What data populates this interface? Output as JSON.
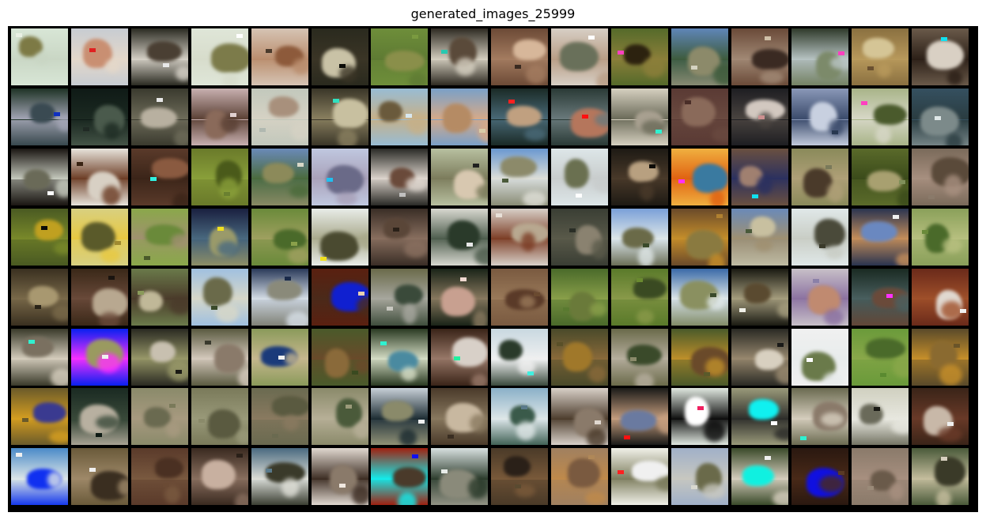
{
  "title": "generated_images_25999",
  "grid": {
    "rows": 8,
    "cols": 16,
    "tiles": [
      [
        "#d8e6d6",
        "#c9d6c4",
        "#7d7a45",
        0,
        "#e9f0e4"
      ],
      [
        "#c7ccd2",
        "#e5d8c9",
        "#c98f72",
        1,
        "#e02020"
      ],
      [
        "#2b2b22",
        "#d8d3c9",
        "#4a3f33",
        2,
        "#e8e8e8"
      ],
      [
        "#dfe6d8",
        "#d7dccb",
        "#7c7b4a",
        0,
        "#ffffff"
      ],
      [
        "#d6c4b4",
        "#b98c6c",
        "#8d5a3b",
        0,
        "#4a3a2c"
      ],
      [
        "#2a2a1e",
        "#3b3526",
        "#c9c2a6",
        2,
        "#0c0c08"
      ],
      [
        "#6e8e3a",
        "#5e7a33",
        "#8a8f4a",
        3,
        "#7a9a40"
      ],
      [
        "#2e2a22",
        "#d7d1c2",
        "#5a4a3a",
        2,
        "#28c8b0"
      ],
      [
        "#6c4a36",
        "#a57d61",
        "#d7b79a",
        2,
        "#3a2a20"
      ],
      [
        "#d7cfc5",
        "#b89c84",
        "#69705a",
        1,
        "#ffffff"
      ],
      [
        "#556a2a",
        "#8c7f3a",
        "#2c220f",
        0,
        "#ff40c0"
      ],
      [
        "#5f86b8",
        "#3d5a3a",
        "#8c8a6a",
        4,
        "#d4d2c0"
      ],
      [
        "#6a4a38",
        "#a28a76",
        "#3a2a22",
        2,
        "#d0c0a8"
      ],
      [
        "#2f3a2a",
        "#bac6c6",
        "#7c8a6a",
        4,
        "#ff40c0"
      ],
      [
        "#8a7040",
        "#b99a5c",
        "#d5c596",
        0,
        "#6a5030"
      ],
      [
        "#6a5a4a",
        "#2a1e16",
        "#d9d0c4",
        2,
        "#10e0f0"
      ],
      [
        "#1f3326",
        "#a4a6b6",
        "#3a4a52",
        4,
        "#1030c0"
      ],
      [
        "#0f1a16",
        "#1c2a22",
        "#4a5a4c",
        4,
        "#202a24"
      ],
      [
        "#3a3a2e",
        "#6e6c5a",
        "#b8b0a0",
        2,
        "#e8e8e8"
      ],
      [
        "#c8b0b0",
        "#5a4034",
        "#8a6a5a",
        0,
        "#e0d0d0"
      ],
      [
        "#c2c8bc",
        "#d6d2c4",
        "#a8907c",
        1,
        "#b0b8b0"
      ],
      [
        "#3a3628",
        "#8a8060",
        "#c8c0a0",
        2,
        "#30e0c0"
      ],
      [
        "#98bcd4",
        "#c7b087",
        "#6a5a3c",
        0,
        "#d8e8f0"
      ],
      [
        "#7aa0c8",
        "#d7aa88",
        "#b58b64",
        0,
        "#d8cca8"
      ],
      [
        "#1a2a26",
        "#4a6a78",
        "#c0a080",
        0,
        "#ff2020"
      ],
      [
        "#2a3a36",
        "#6a7a7c",
        "#b5765c",
        1,
        "#ff1010"
      ],
      [
        "#d6d0c0",
        "#6a6a58",
        "#a8a090",
        2,
        "#30f0d0"
      ],
      [
        "#5a3a34",
        "#6a4a40",
        "#8a6a5a",
        3,
        "#4a2e28"
      ],
      [
        "#1e1e22",
        "#4a4440",
        "#d2c8c0",
        2,
        "#cc9090"
      ],
      [
        "#8a98b8",
        "#3a4a6a",
        "#c8d0e0",
        4,
        "#283850"
      ],
      [
        "#a8b488",
        "#d8d8c8",
        "#4a5a2c",
        0,
        "#ff40c0"
      ],
      [
        "#355060",
        "#2a3c40",
        "#7c8a8a",
        4,
        "#e0e8e8"
      ],
      [
        "#1a1612",
        "#c8ccc0",
        "#6a6a58",
        3,
        "#ffffff"
      ],
      [
        "#e8e4dc",
        "#6a3a22",
        "#d8d0c4",
        0,
        "#3a2414"
      ],
      [
        "#5a3a2a",
        "#3a2418",
        "#8a5a40",
        2,
        "#30f0e0"
      ],
      [
        "#6a7a2a",
        "#8aa03a",
        "#4a5a1a",
        3,
        "#6a8030"
      ],
      [
        "#6a8ab8",
        "#4a6a3a",
        "#8c8a5a",
        4,
        "#d8d8c8"
      ],
      [
        "#c0c8e0",
        "#a8a0b8",
        "#6a6a88",
        2,
        "#20c0f0"
      ],
      [
        "#2a2a26",
        "#e0d8d0",
        "#6a4a3a",
        2,
        "#c0c0c0"
      ],
      [
        "#b8c0a0",
        "#7a7a5a",
        "#d8c8b0",
        1,
        "#202020"
      ],
      [
        "#6a98d0",
        "#e0e0d8",
        "#8c8a6a",
        4,
        "#4a5a3a"
      ],
      [
        "#dde6e8",
        "#c8cccc",
        "#6a7050",
        0,
        "#ffffff"
      ],
      [
        "#1e1a14",
        "#4a3a2a",
        "#b8a080",
        2,
        "#0e0c08"
      ],
      [
        "#f0b040",
        "#e06010",
        "#3a7aa0",
        1,
        "#ff30ff"
      ],
      [
        "#6a5040",
        "#2a3060",
        "#a08070",
        2,
        "#10e0f0"
      ],
      [
        "#8a8a5a",
        "#b0a078",
        "#4a3a2a",
        2,
        "#7a7a5a"
      ],
      [
        "#5a6a2a",
        "#3a4a1a",
        "#a8a070",
        3,
        "#80905a"
      ],
      [
        "#7a6a5a",
        "#a89080",
        "#5a4a3a",
        2,
        "#8a7a6a"
      ],
      [
        "#4a5a22",
        "#7a8a2a",
        "#c0a020",
        3,
        "#0c0c08"
      ],
      [
        "#d8d080",
        "#e8c840",
        "#5a5a2a",
        3,
        "#a08a30"
      ],
      [
        "#8aa84a",
        "#a09070",
        "#6a8a3a",
        3,
        "#4a5a2a"
      ],
      [
        "#1a2040",
        "#4a6a80",
        "#9a9a6a",
        4,
        "#f0e020"
      ],
      [
        "#6a8a3a",
        "#a0a060",
        "#4a6a2a",
        3,
        "#8aa04a"
      ],
      [
        "#e8ece8",
        "#a8a88a",
        "#4a4a30",
        0,
        "#f0e020"
      ],
      [
        "#3a2e26",
        "#8a7060",
        "#5a4638",
        2,
        "#2a2018"
      ],
      [
        "#d8d8d0",
        "#4a5a4a",
        "#2a3a2a",
        2,
        "#e8e8e8"
      ],
      [
        "#d8d0c8",
        "#7a3a22",
        "#b8a890",
        1,
        "#e8e0d8"
      ],
      [
        "#3a3e34",
        "#5a5a4a",
        "#8a8270",
        2,
        "#2a2e26"
      ],
      [
        "#7aa0d8",
        "#e0e8e8",
        "#6a6a48",
        4,
        "#3a4a2a"
      ],
      [
        "#6a4a2a",
        "#c8902a",
        "#8a7a40",
        0,
        "#b08030"
      ],
      [
        "#6a8ab8",
        "#a09070",
        "#c8c0a0",
        4,
        "#4a5a3a"
      ],
      [
        "#e0e8e8",
        "#c8ccc4",
        "#4a4a3a",
        1,
        "#3a3a2a"
      ],
      [
        "#2a3450",
        "#c8905a",
        "#6a88c0",
        0,
        "#f0f0f0"
      ],
      [
        "#8aa05a",
        "#b8c080",
        "#4a6a2a",
        3,
        "#6a8a3a"
      ],
      [
        "#3a3020",
        "#7a6a4a",
        "#a89870",
        2,
        "#2a2418"
      ],
      [
        "#3a2818",
        "#6a4a3a",
        "#b8a890",
        2,
        "#1a1410"
      ],
      [
        "#6a7a4a",
        "#4a3a2a",
        "#c0b898",
        2,
        "#8a9a5a"
      ],
      [
        "#a0c0e0",
        "#d8d8c8",
        "#6a6a4a",
        0,
        "#3a4a2a"
      ],
      [
        "#2a3a5a",
        "#d8e0e8",
        "#8a8a7a",
        4,
        "#1a2a4a"
      ],
      [
        "#5a2010",
        "#4a2a1a",
        "#1020d0",
        2,
        "#e8d0b0"
      ],
      [
        "#6a6a4a",
        "#a8a8a0",
        "#3a4a3a",
        4,
        "#c8c8c0"
      ],
      [
        "#1a2418",
        "#8a7a60",
        "#c8a090",
        2,
        "#f0d8d0"
      ],
      [
        "#7a5a40",
        "#9a7a5a",
        "#5a3a28",
        3,
        "#6a4a30"
      ],
      [
        "#4a6a2a",
        "#8aa04a",
        "#6a7a3a",
        3,
        "#5a7a30"
      ],
      [
        "#5a7a2a",
        "#8a9a4a",
        "#3a4a22",
        3,
        "#6a8a30"
      ],
      [
        "#3a6aa8",
        "#e0e8e8",
        "#8a9060",
        4,
        "#3a4a2a"
      ],
      [
        "#1a1a12",
        "#a8a080",
        "#5a4a30",
        2,
        "#f0f0e8"
      ],
      [
        "#c8c0c8",
        "#8a70a0",
        "#c08a70",
        1,
        "#8a80a8"
      ],
      [
        "#1a2a22",
        "#4a6060",
        "#6a4a3a",
        4,
        "#ff30ff"
      ],
      [
        "#6a2a1a",
        "#a0502a",
        "#e0d8d0",
        2,
        "#f0f0f0"
      ],
      [
        "#3a3a2a",
        "#d8d0c0",
        "#7a7060",
        2,
        "#30f0d0"
      ],
      [
        "#0820f0",
        "#ff30ff",
        "#9a9a60",
        0,
        "#f0f0f0"
      ],
      [
        "#2a2a22",
        "#9a9a6a",
        "#c8c0b0",
        2,
        "#1a1a14"
      ],
      [
        "#5a5a40",
        "#d8ccc0",
        "#8a7a6a",
        2,
        "#3a3a2e"
      ],
      [
        "#8a9a5a",
        "#c8b890",
        "#1a3a7a",
        1,
        "#f0f0f0"
      ],
      [
        "#4a5a2a",
        "#6a4a2a",
        "#8a6a3a",
        3,
        "#3a4a20"
      ],
      [
        "#2a3a22",
        "#d8e0c8",
        "#4a8aa0",
        2,
        "#30f0d0"
      ],
      [
        "#3a2418",
        "#9a7a6a",
        "#d8d0c8",
        2,
        "#20f0a0"
      ],
      [
        "#c8d8e0",
        "#f0f0f0",
        "#2a3a2a",
        4,
        "#40f0e0"
      ],
      [
        "#4a4a2a",
        "#8a6a3a",
        "#a0782a",
        3,
        "#5a5028"
      ],
      [
        "#6a6a4a",
        "#b8b0a0",
        "#3a4a2a",
        2,
        "#8a8a6a"
      ],
      [
        "#4a5a2a",
        "#c0902a",
        "#6a4a2a",
        3,
        "#5a5a2a"
      ],
      [
        "#2a2a24",
        "#9a8a70",
        "#d8d0c0",
        2,
        "#1a1a18"
      ],
      [
        "#f0f0f0",
        "#e8ecec",
        "#6a7a4a",
        0,
        "#ffffff"
      ],
      [
        "#6a9a3a",
        "#8aa84a",
        "#4a6a2a",
        3,
        "#5a8a30"
      ],
      [
        "#5a4a2a",
        "#c8902a",
        "#8a6a30",
        3,
        "#6a5428"
      ],
      [
        "#6a5a2a",
        "#d8a020",
        "#3a3a90",
        0,
        "#6a5a2a"
      ],
      [
        "#1a2a22",
        "#3a4a3a",
        "#b8b0a0",
        4,
        "#0e1a14"
      ],
      [
        "#8a8a6a",
        "#a89a80",
        "#6a6a50",
        2,
        "#7a7a5a"
      ],
      [
        "#7a7a5a",
        "#9a9a7a",
        "#5a5a40",
        2,
        "#8a8a6a"
      ],
      [
        "#6a6a50",
        "#8a7a60",
        "#5a5a40",
        3,
        "#6a6a50"
      ],
      [
        "#8a8a6a",
        "#b8b098",
        "#4a5a3a",
        2,
        "#9a9a7a"
      ],
      [
        "#c8d0d8",
        "#1a2a30",
        "#8a8a6a",
        4,
        "#f0f0f0"
      ],
      [
        "#4a3a2a",
        "#8a7a60",
        "#c8b8a0",
        2,
        "#3a2e22"
      ],
      [
        "#8ab0c8",
        "#e0e8e8",
        "#3a5a4a",
        4,
        "#5a7a8a"
      ],
      [
        "#d8d0c8",
        "#4a3a2a",
        "#8a7a6a",
        2,
        "#e0d8d0"
      ],
      [
        "#1a1a18",
        "#c8a080",
        "#6a7aa0",
        1,
        "#ff1010"
      ],
      [
        "#e0e8e0",
        "#0a0a0a",
        "#ffffff",
        2,
        "#f02060"
      ],
      [
        "#9a9a7a",
        "#2a2a28",
        "#10f0f0",
        2,
        "#ffffff"
      ],
      [
        "#6a6a50",
        "#d8d0c0",
        "#8a7a6a",
        2,
        "#30f0d0"
      ],
      [
        "#d0d0c0",
        "#e8e8e0",
        "#6a6a5a",
        4,
        "#1a1a14"
      ],
      [
        "#3a2418",
        "#6a3a28",
        "#c8b8a8",
        2,
        "#f0f0f0"
      ],
      [
        "#4a8ac8",
        "#e0e8e8",
        "#1030f0",
        4,
        "#f0f0f0"
      ],
      [
        "#6a5a3a",
        "#a08a6a",
        "#3a2e20",
        0,
        "#f0f0f0"
      ],
      [
        "#5a3a2a",
        "#7a5a40",
        "#4a3022",
        3,
        "#6a4a34"
      ],
      [
        "#3a2a20",
        "#8a7060",
        "#c8b0a0",
        2,
        "#2a2018"
      ],
      [
        "#4a6a80",
        "#e0e0d8",
        "#3a3a2a",
        4,
        "#5a7a8a"
      ],
      [
        "#e0d8d0",
        "#3a2a20",
        "#8a7a6a",
        2,
        "#f0e8e0"
      ],
      [
        "#a02010",
        "#10f0f0",
        "#4a3a2a",
        2,
        "#1010f0"
      ],
      [
        "#d8e0e0",
        "#2a3a2a",
        "#8a8a7a",
        4,
        "#e8ece8"
      ],
      [
        "#4a3a28",
        "#7a5a3a",
        "#2a2018",
        3,
        "#5a4a30"
      ],
      [
        "#a08060",
        "#c08a4a",
        "#7a5a40",
        3,
        "#b08858"
      ],
      [
        "#f0f0e8",
        "#7a7a5a",
        "#f0f0f0",
        0,
        "#ff2020"
      ],
      [
        "#a0b0c8",
        "#c8c8c0",
        "#6a6a4a",
        0,
        "#d8d8d0"
      ],
      [
        "#3a4a2a",
        "#d8d0c0",
        "#10f0e0",
        2,
        "#f0f0f0"
      ],
      [
        "#2a1810",
        "#4a2a18",
        "#1010e0",
        2,
        "#5a3a24"
      ],
      [
        "#8a7a6a",
        "#a89080",
        "#6a5a4a",
        3,
        "#9a8a78"
      ],
      [
        "#4a5a3a",
        "#c8c0a0",
        "#3a3a28",
        2,
        "#d8d0c0"
      ]
    ]
  }
}
